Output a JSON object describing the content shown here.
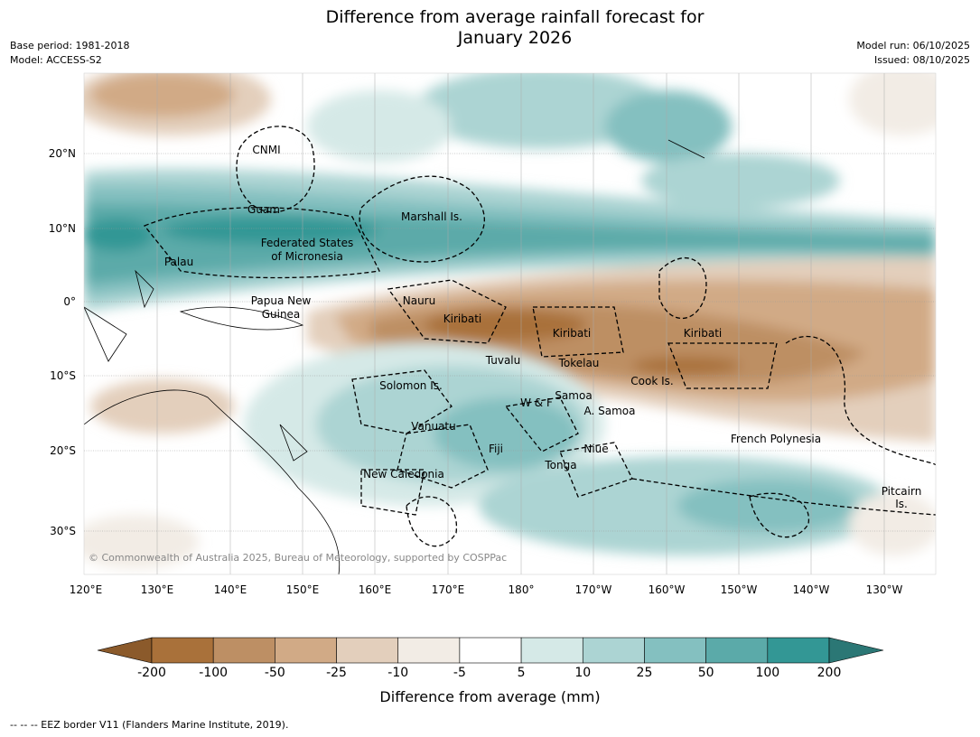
{
  "title": {
    "line1": "Difference from average rainfall forecast for",
    "line2": "January 2026"
  },
  "meta": {
    "base_period": "Base period: 1981-2018",
    "model": "Model: ACCESS-S2",
    "model_run": "Model run: 06/10/2025",
    "issued": "Issued: 08/10/2025"
  },
  "map": {
    "copyright": "© Commonwealth of Australia 2025, Bureau of Meteorology, supported by COSPPac",
    "lat_labels": [
      "20°N",
      "10°N",
      "0°",
      "10°S",
      "20°S",
      "30°S"
    ],
    "lon_labels": [
      "120°E",
      "130°E",
      "140°E",
      "150°E",
      "160°E",
      "170°E",
      "180°",
      "170°W",
      "160°W",
      "150°W",
      "140°W",
      "130°W"
    ],
    "regions": [
      "CNMI",
      "Guam",
      "Marshall Is.",
      "Federated States",
      "of Micronesia",
      "Palau",
      "Papua New",
      "Guinea",
      "Nauru",
      "Kiribati",
      "Kiribati",
      "Kiribati",
      "Tuvalu",
      "Tokelau",
      "Cook Is.",
      "Solomon Is.",
      "Samoa",
      "W & F",
      "A. Samoa",
      "Vanuatu",
      "Fiji",
      "Niue",
      "Tonga",
      "French Polynesia",
      "New Caledonia",
      "Pitcairn",
      "Is."
    ]
  },
  "colorbar": {
    "title": "Difference from average (mm)",
    "labels": [
      "-200",
      "-100",
      "-50",
      "-25",
      "-10",
      "-5",
      "5",
      "10",
      "25",
      "50",
      "100",
      "200"
    ],
    "colors": [
      "#8b5a2b",
      "#a9713a",
      "#bd8f64",
      "#d1aa86",
      "#e3cfbc",
      "#f2ece5",
      "#ffffff",
      "#d5e9e7",
      "#acd4d3",
      "#84c0c0",
      "#5baaa9",
      "#339795",
      "#2b7775"
    ]
  },
  "footnote": "--  --  -- EEZ border V11 (Flanders Marine Institute, 2019)."
}
